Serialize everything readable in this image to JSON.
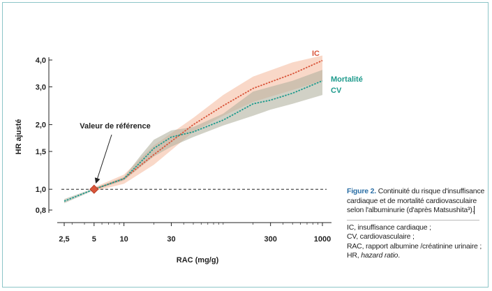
{
  "chart_data": {
    "type": "line",
    "xscale": "log",
    "yscale": "log",
    "xlabel": "RAC (mg/g)",
    "ylabel": "HR ajusté",
    "x_ticks": [
      2.5,
      5,
      10,
      30,
      300,
      1000
    ],
    "x_tick_labels": [
      "2,5",
      "5",
      "10",
      "30",
      "300",
      "1000"
    ],
    "y_ticks": [
      0.8,
      1.0,
      1.5,
      2.0,
      3.0,
      4.0
    ],
    "y_tick_labels": [
      "0,8",
      "1,0",
      "1,5",
      "2,0",
      "3,0",
      "4,0"
    ],
    "xlim": [
      2.3,
      1100
    ],
    "ylim": [
      0.75,
      4.2
    ],
    "reference_line_y": 1.0,
    "reference_point": {
      "x": 5,
      "y": 1.0,
      "label": "Valeur de référence"
    },
    "series": [
      {
        "name": "IC",
        "color": "#d9553a",
        "band_color": "#f7cbb5",
        "x": [
          5,
          10,
          20,
          50,
          100,
          200,
          500,
          1000
        ],
        "y": [
          1.0,
          1.12,
          1.45,
          2.0,
          2.45,
          2.95,
          3.45,
          3.98
        ],
        "lower": [
          0.98,
          1.06,
          1.3,
          1.85,
          2.2,
          2.55,
          2.9,
          3.2
        ],
        "upper": [
          1.02,
          1.17,
          1.6,
          2.15,
          2.75,
          3.35,
          3.9,
          4.2
        ]
      },
      {
        "name": "Mortalité CV",
        "color": "#1e9a8c",
        "band_color": "#b3b3a0",
        "x": [
          2.5,
          5,
          10,
          15,
          20,
          30,
          50,
          100,
          200,
          300,
          500,
          1000
        ],
        "y": [
          0.88,
          1.0,
          1.12,
          1.35,
          1.55,
          1.75,
          1.85,
          2.1,
          2.5,
          2.6,
          2.8,
          3.2
        ],
        "lower": [
          0.86,
          0.99,
          1.1,
          1.28,
          1.42,
          1.58,
          1.75,
          1.98,
          2.2,
          2.35,
          2.5,
          2.75
        ],
        "upper": [
          0.9,
          1.01,
          1.14,
          1.45,
          1.7,
          1.88,
          1.95,
          2.25,
          2.85,
          3.0,
          3.2,
          3.6
        ]
      }
    ],
    "labels": {
      "ic": "IC",
      "mortalite_line1": "Mortalité",
      "mortalite_line2": "CV"
    }
  },
  "caption": {
    "figure": "Figure 2.",
    "title": "Continuité du risque d'insuffisance cardiaque et de mortalité cardiovasculaire selon l'albuminurie (d'après Matsushita³).",
    "abbreviations": [
      "IC, insuffisance cardiaque ;",
      "CV, cardiovasculaire ;",
      "RAC, rapport albumine /créatinine urinaire ;",
      "HR, hazard ratio."
    ]
  },
  "colors": {
    "frame": "#8cc5c8",
    "axis": "#222222",
    "figure_label": "#2a6ea5"
  }
}
